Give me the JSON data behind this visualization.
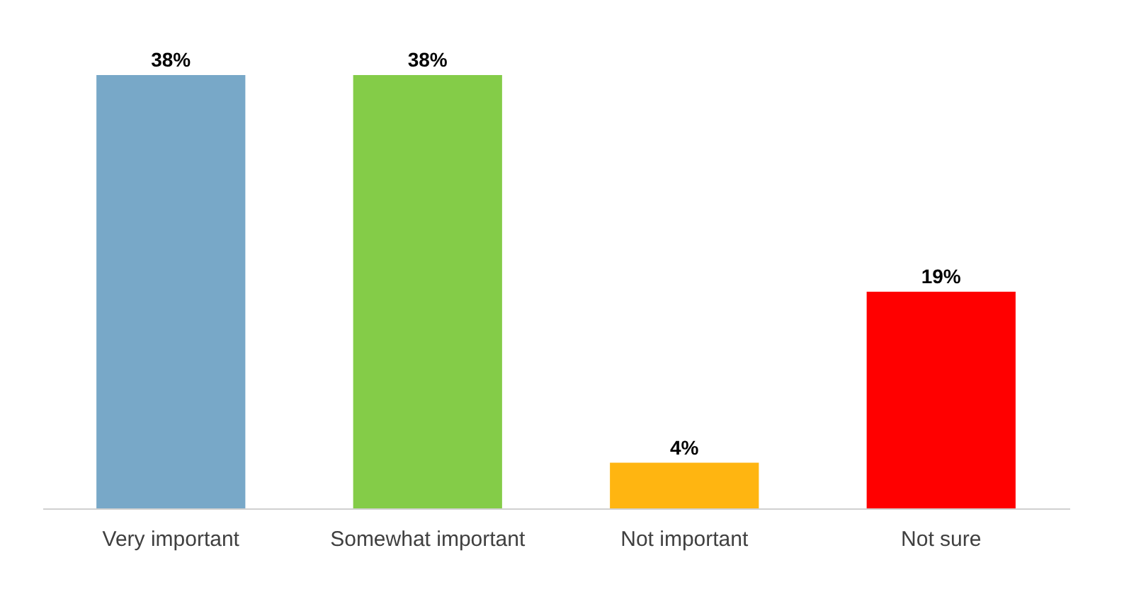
{
  "chart_data": {
    "type": "bar",
    "categories": [
      "Very important",
      "Somewhat important",
      "Not important",
      "Not sure"
    ],
    "values": [
      38,
      38,
      4,
      19
    ],
    "colors": [
      "#78a8c8",
      "#84cc48",
      "#ffb511",
      "#ff0000"
    ],
    "value_labels": [
      "38%",
      "38%",
      "4%",
      "19%"
    ],
    "tick_labels": "x"
  }
}
